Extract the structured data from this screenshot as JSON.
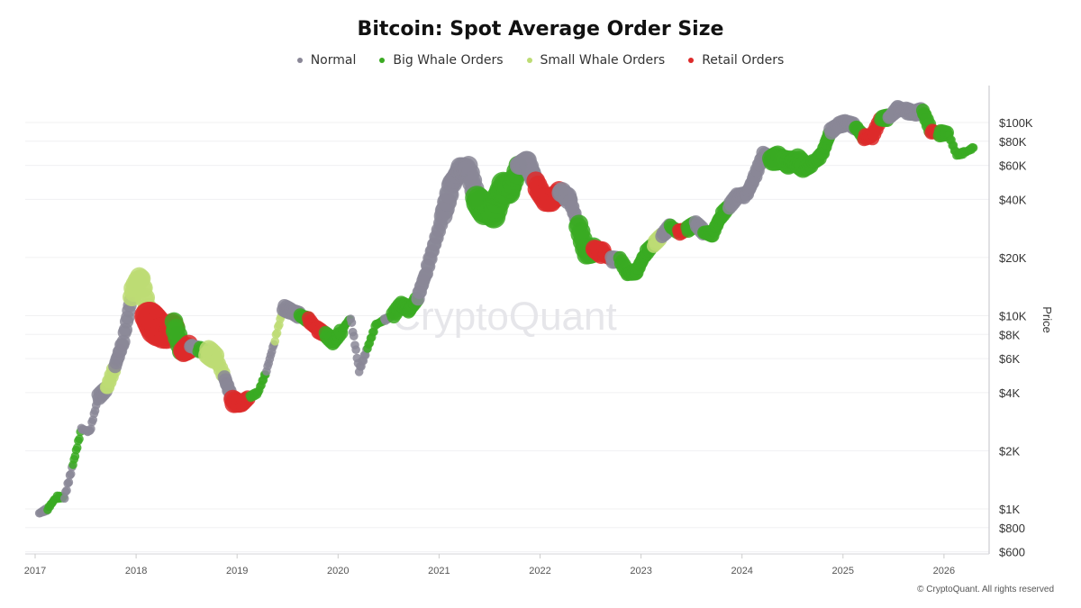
{
  "chart_data": {
    "type": "scatter",
    "title": "Bitcoin: Spot Average Order Size",
    "ylabel": "Price",
    "xlabel": "",
    "y_scale": "log",
    "ylim": [
      585,
      155000
    ],
    "xlim": [
      "2016-11",
      "2026-07"
    ],
    "grid": true,
    "legend_position": "top",
    "y_ticks": [
      {
        "value": 100000,
        "label": "$100K"
      },
      {
        "value": 80000,
        "label": "$80K"
      },
      {
        "value": 60000,
        "label": "$60K"
      },
      {
        "value": 40000,
        "label": "$40K"
      },
      {
        "value": 20000,
        "label": "$20K"
      },
      {
        "value": 10000,
        "label": "$10K"
      },
      {
        "value": 8000,
        "label": "$8K"
      },
      {
        "value": 6000,
        "label": "$6K"
      },
      {
        "value": 4000,
        "label": "$4K"
      },
      {
        "value": 2000,
        "label": "$2K"
      },
      {
        "value": 1000,
        "label": "$1K"
      },
      {
        "value": 800,
        "label": "$800"
      },
      {
        "value": 600,
        "label": "$600"
      }
    ],
    "x_ticks": [
      "2017",
      "2018",
      "2019",
      "2020",
      "2021",
      "2022",
      "2023",
      "2024",
      "2025",
      "2026"
    ],
    "categories": [
      {
        "key": "N",
        "name": "Normal",
        "color": "#8a8797"
      },
      {
        "key": "B",
        "name": "Big Whale Orders",
        "color": "#3aaa22"
      },
      {
        "key": "S",
        "name": "Small Whale Orders",
        "color": "#bddc74"
      },
      {
        "key": "R",
        "name": "Retail Orders",
        "color": "#dd2a2a"
      }
    ],
    "points": [
      [
        "2017-01",
        950,
        "N",
        1
      ],
      [
        "2017-02",
        1000,
        "B",
        1
      ],
      [
        "2017-03",
        1150,
        "B",
        1
      ],
      [
        "2017-04",
        1150,
        "N",
        1
      ],
      [
        "2017-05",
        1700,
        "B",
        1
      ],
      [
        "2017-06",
        2600,
        "N",
        1
      ],
      [
        "2017-07",
        2500,
        "N",
        1
      ],
      [
        "2017-08",
        3800,
        "N",
        2
      ],
      [
        "2017-09",
        4200,
        "S",
        2
      ],
      [
        "2017-10",
        5500,
        "N",
        2
      ],
      [
        "2017-11",
        7500,
        "N",
        2
      ],
      [
        "2017-12",
        13000,
        "S",
        3
      ],
      [
        "2018-01",
        16000,
        "S",
        3
      ],
      [
        "2018-02",
        10000,
        "R",
        5
      ],
      [
        "2018-03",
        8500,
        "R",
        5
      ],
      [
        "2018-04",
        8000,
        "R",
        4
      ],
      [
        "2018-05",
        9000,
        "B",
        3
      ],
      [
        "2018-06",
        6500,
        "R",
        3
      ],
      [
        "2018-07",
        7000,
        "N",
        2
      ],
      [
        "2018-08",
        6700,
        "B",
        2
      ],
      [
        "2018-09",
        6500,
        "S",
        3
      ],
      [
        "2018-10",
        6000,
        "S",
        2
      ],
      [
        "2018-11",
        4800,
        "N",
        2
      ],
      [
        "2018-12",
        3600,
        "R",
        3
      ],
      [
        "2019-01",
        3500,
        "R",
        2
      ],
      [
        "2019-02",
        3800,
        "B",
        1
      ],
      [
        "2019-03",
        4000,
        "B",
        1
      ],
      [
        "2019-04",
        5200,
        "N",
        1
      ],
      [
        "2019-05",
        7500,
        "S",
        1
      ],
      [
        "2019-06",
        11000,
        "N",
        2
      ],
      [
        "2019-07",
        10500,
        "N",
        2
      ],
      [
        "2019-08",
        10000,
        "B",
        2
      ],
      [
        "2019-09",
        9500,
        "R",
        2
      ],
      [
        "2019-10",
        8500,
        "R",
        2
      ],
      [
        "2019-11",
        8000,
        "B",
        2
      ],
      [
        "2019-12",
        7300,
        "B",
        2
      ],
      [
        "2020-01",
        8500,
        "B",
        1
      ],
      [
        "2020-02",
        9800,
        "N",
        1
      ],
      [
        "2020-03",
        5200,
        "N",
        1
      ],
      [
        "2020-04",
        6800,
        "B",
        1
      ],
      [
        "2020-05",
        9000,
        "B",
        1
      ],
      [
        "2020-06",
        9500,
        "N",
        1
      ],
      [
        "2020-07",
        10000,
        "B",
        2
      ],
      [
        "2020-08",
        11500,
        "B",
        2
      ],
      [
        "2020-09",
        10700,
        "B",
        2
      ],
      [
        "2020-10",
        12500,
        "N",
        2
      ],
      [
        "2020-11",
        17000,
        "N",
        2
      ],
      [
        "2020-12",
        24000,
        "N",
        2
      ],
      [
        "2021-01",
        33000,
        "N",
        3
      ],
      [
        "2021-02",
        48000,
        "N",
        3
      ],
      [
        "2021-03",
        57000,
        "N",
        3
      ],
      [
        "2021-04",
        58000,
        "N",
        3
      ],
      [
        "2021-05",
        40000,
        "B",
        4
      ],
      [
        "2021-06",
        35000,
        "B",
        4
      ],
      [
        "2021-07",
        34000,
        "B",
        4
      ],
      [
        "2021-08",
        46000,
        "B",
        4
      ],
      [
        "2021-09",
        45000,
        "B",
        3
      ],
      [
        "2021-10",
        60000,
        "N",
        3
      ],
      [
        "2021-11",
        62000,
        "N",
        3
      ],
      [
        "2021-12",
        48000,
        "R",
        3
      ],
      [
        "2022-01",
        40000,
        "R",
        3
      ],
      [
        "2022-02",
        40000,
        "R",
        3
      ],
      [
        "2022-03",
        44000,
        "N",
        3
      ],
      [
        "2022-04",
        40000,
        "N",
        2
      ],
      [
        "2022-05",
        30000,
        "B",
        3
      ],
      [
        "2022-06",
        21000,
        "B",
        3
      ],
      [
        "2022-07",
        22000,
        "R",
        3
      ],
      [
        "2022-08",
        21000,
        "R",
        2
      ],
      [
        "2022-09",
        19500,
        "N",
        2
      ],
      [
        "2022-10",
        19500,
        "B",
        2
      ],
      [
        "2022-11",
        16500,
        "B",
        2
      ],
      [
        "2022-12",
        17000,
        "B",
        2
      ],
      [
        "2023-01",
        21000,
        "B",
        2
      ],
      [
        "2023-02",
        23500,
        "S",
        2
      ],
      [
        "2023-03",
        26000,
        "N",
        2
      ],
      [
        "2023-04",
        29000,
        "B",
        2
      ],
      [
        "2023-05",
        27000,
        "R",
        2
      ],
      [
        "2023-06",
        28000,
        "B",
        2
      ],
      [
        "2023-07",
        30000,
        "N",
        2
      ],
      [
        "2023-08",
        27000,
        "B",
        2
      ],
      [
        "2023-09",
        26500,
        "B",
        2
      ],
      [
        "2023-10",
        33000,
        "B",
        2
      ],
      [
        "2023-11",
        37000,
        "N",
        2
      ],
      [
        "2023-12",
        42000,
        "N",
        2
      ],
      [
        "2024-01",
        42000,
        "N",
        2
      ],
      [
        "2024-02",
        52000,
        "N",
        2
      ],
      [
        "2024-03",
        68000,
        "N",
        2
      ],
      [
        "2024-04",
        64000,
        "B",
        3
      ],
      [
        "2024-05",
        66000,
        "B",
        3
      ],
      [
        "2024-06",
        62000,
        "B",
        3
      ],
      [
        "2024-07",
        64000,
        "B",
        3
      ],
      [
        "2024-08",
        58000,
        "B",
        2
      ],
      [
        "2024-09",
        62000,
        "B",
        2
      ],
      [
        "2024-10",
        68000,
        "B",
        2
      ],
      [
        "2024-11",
        90000,
        "N",
        2
      ],
      [
        "2024-12",
        97000,
        "N",
        2
      ],
      [
        "2025-01",
        100000,
        "N",
        2
      ],
      [
        "2025-02",
        95000,
        "B",
        2
      ],
      [
        "2025-03",
        84000,
        "R",
        2
      ],
      [
        "2025-04",
        85000,
        "R",
        2
      ],
      [
        "2025-05",
        105000,
        "B",
        2
      ],
      [
        "2025-06",
        106000,
        "N",
        2
      ],
      [
        "2025-07",
        118000,
        "N",
        2
      ],
      [
        "2025-08",
        115000,
        "N",
        2
      ],
      [
        "2025-09",
        112000,
        "N",
        2
      ],
      [
        "2025-10",
        115000,
        "B",
        2
      ],
      [
        "2025-11",
        90000,
        "R",
        2
      ],
      [
        "2025-12",
        88000,
        "B",
        2
      ],
      [
        "2026-01",
        88000,
        "B",
        1
      ],
      [
        "2026-02",
        68000,
        "B",
        1
      ],
      [
        "2026-03",
        70000,
        "B",
        1
      ],
      [
        "2026-04",
        74000,
        "B",
        1
      ]
    ]
  },
  "watermark": "CryptoQuant",
  "footer": "© CryptoQuant. All rights reserved"
}
